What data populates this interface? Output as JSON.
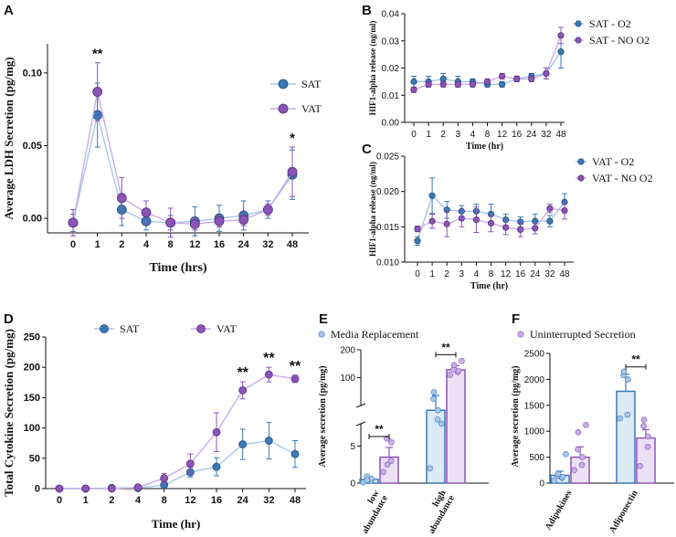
{
  "colors": {
    "sat": "#3a7ab5",
    "vat": "#8a55b5",
    "sat_light": "#a8c6ea",
    "vat_light": "#c8aee6",
    "sat_fill": "#dce9f7",
    "vat_fill": "#ebe1f7"
  },
  "panel_letters": {
    "a": "A",
    "b": "B",
    "c": "C",
    "d": "D",
    "e": "E",
    "f": "F"
  },
  "chart_data": [
    {
      "id": "A",
      "type": "line",
      "ylabel": "Average LDH Secretion (pg/mg)",
      "xlabel": "Time (hrs)",
      "categories": [
        "0",
        "1",
        "2",
        "4",
        "8",
        "12",
        "16",
        "24",
        "32",
        "48"
      ],
      "ylim": [
        -0.01,
        0.12
      ],
      "yticks": [
        "0.00",
        "0.05",
        "0.10"
      ],
      "ytick_values": [
        0,
        0.05,
        0.1
      ],
      "series": [
        {
          "name": "SAT",
          "values": [
            -0.003,
            0.071,
            0.006,
            -0.002,
            -0.003,
            -0.002,
            0.0,
            0.002,
            0.006,
            0.03
          ],
          "errors": [
            0.006,
            0.022,
            0.011,
            0.006,
            0.005,
            0.01,
            0.009,
            0.01,
            0.006,
            0.017
          ]
        },
        {
          "name": "VAT",
          "values": [
            -0.003,
            0.087,
            0.014,
            0.004,
            -0.003,
            -0.004,
            -0.002,
            -0.001,
            0.006,
            0.032
          ],
          "errors": [
            0.009,
            0.02,
            0.014,
            0.008,
            0.01,
            0.004,
            0.004,
            0.004,
            0.004,
            0.017
          ]
        }
      ],
      "annotations": [
        {
          "category": "1",
          "text": "**"
        },
        {
          "category": "48",
          "text": "*"
        }
      ]
    },
    {
      "id": "B",
      "type": "line",
      "ylabel": "HIF1-alpha release (ng/ml)",
      "xlabel": "Time (hr)",
      "categories": [
        "0",
        "1",
        "2",
        "3",
        "4",
        "8",
        "12",
        "16",
        "24",
        "32",
        "48"
      ],
      "ylim": [
        0.0,
        0.04
      ],
      "yticks": [
        "0.00",
        "0.01",
        "0.02",
        "0.03",
        "0.04"
      ],
      "ytick_values": [
        0,
        0.01,
        0.02,
        0.03,
        0.04
      ],
      "series": [
        {
          "name": "SAT - O2",
          "values": [
            0.015,
            0.015,
            0.016,
            0.015,
            0.015,
            0.014,
            0.014,
            0.016,
            0.017,
            0.018,
            0.026
          ],
          "errors": [
            0.002,
            0.002,
            0.002,
            0.002,
            0.001,
            0.001,
            0.001,
            0.001,
            0.001,
            0.002,
            0.006
          ]
        },
        {
          "name": "SAT - NO O2",
          "values": [
            0.012,
            0.014,
            0.014,
            0.014,
            0.014,
            0.015,
            0.017,
            0.016,
            0.016,
            0.018,
            0.032
          ],
          "errors": [
            0.001,
            0.001,
            0.001,
            0.001,
            0.001,
            0.001,
            0.001,
            0.001,
            0.001,
            0.002,
            0.003
          ]
        }
      ]
    },
    {
      "id": "C",
      "type": "line",
      "ylabel": "HIF1-alpha release (ng/ml)",
      "xlabel": "Time (hr)",
      "categories": [
        "0",
        "1",
        "2",
        "3",
        "4",
        "8",
        "12",
        "16",
        "24",
        "32",
        "48"
      ],
      "ylim": [
        0.01,
        0.025
      ],
      "yticks": [
        "0.010",
        "0.015",
        "0.020",
        "0.025"
      ],
      "ytick_values": [
        0.01,
        0.015,
        0.02,
        0.025
      ],
      "series": [
        {
          "name": "VAT - O2",
          "values": [
            0.013,
            0.0194,
            0.0174,
            0.0172,
            0.0172,
            0.0168,
            0.016,
            0.0157,
            0.0158,
            0.0158,
            0.0185
          ],
          "errors": [
            0.0006,
            0.0025,
            0.0012,
            0.0008,
            0.001,
            0.0014,
            0.0008,
            0.0007,
            0.001,
            0.0008,
            0.0012
          ]
        },
        {
          "name": "VAT - NO O2",
          "values": [
            0.0147,
            0.0158,
            0.0154,
            0.0162,
            0.016,
            0.0155,
            0.0149,
            0.0146,
            0.0148,
            0.0176,
            0.0173
          ],
          "errors": [
            0.0004,
            0.001,
            0.0018,
            0.0012,
            0.0018,
            0.0012,
            0.001,
            0.001,
            0.0008,
            0.0006,
            0.0012
          ]
        }
      ]
    },
    {
      "id": "D",
      "type": "line",
      "ylabel": "Total Cytokine Secretion (pg/mg)",
      "xlabel": "Time (hr)",
      "categories": [
        "0",
        "1",
        "2",
        "4",
        "8",
        "12",
        "16",
        "24",
        "32",
        "48"
      ],
      "ylim": [
        0,
        250
      ],
      "yticks": [
        "0",
        "50",
        "100",
        "150",
        "200",
        "250"
      ],
      "ytick_values": [
        0,
        50,
        100,
        150,
        200,
        250
      ],
      "series": [
        {
          "name": "SAT",
          "values": [
            0,
            0,
            1,
            1,
            6,
            27,
            36,
            73,
            79,
            57
          ],
          "errors": [
            0,
            0,
            0,
            1,
            3,
            8,
            15,
            25,
            30,
            22
          ]
        },
        {
          "name": "VAT",
          "values": [
            0,
            0,
            0,
            2,
            17,
            41,
            93,
            162,
            188,
            181
          ],
          "errors": [
            0,
            0,
            0,
            2,
            8,
            16,
            32,
            14,
            12,
            6
          ]
        }
      ],
      "annotations": [
        {
          "category": "24",
          "text": "**"
        },
        {
          "category": "32",
          "text": "**"
        },
        {
          "category": "48",
          "text": "**"
        }
      ]
    },
    {
      "id": "E",
      "type": "bar",
      "ylabel": "Average secretion (pg/mg)",
      "categories": [
        "low abundance",
        "high abundance"
      ],
      "category_lines": [
        [
          "low",
          "abundance"
        ],
        [
          "high",
          "abundance"
        ]
      ],
      "ylim_low": [
        0,
        8
      ],
      "ylim_high": [
        0,
        200
      ],
      "yticks_low": [
        "0",
        "5"
      ],
      "yticks_high": [
        "100",
        "200"
      ],
      "series": [
        {
          "name": "Media Replacement",
          "values": [
            0.5,
            28
          ],
          "errors": [
            0.3,
            22
          ],
          "points": [
            [
              0.1,
              0.3,
              0.6,
              0.9,
              0.4
            ],
            [
              2,
              14,
              28,
              45,
              55,
              8
            ]
          ]
        },
        {
          "name": "Uninterrupted Secretion",
          "values": [
            3.5,
            128
          ],
          "errors": [
            1.3,
            15
          ],
          "points": [
            [
              1.5,
              3,
              5.5,
              6,
              2.5
            ],
            [
              110,
              120,
              125,
              130,
              145,
              160
            ]
          ]
        }
      ],
      "annotations": [
        {
          "category": "low abundance",
          "text": "**"
        },
        {
          "category": "high abundance",
          "text": "**"
        }
      ]
    },
    {
      "id": "F",
      "type": "bar",
      "ylabel": "Average secretion (pg/mg)",
      "categories": [
        "Adipokines",
        "Adiponectin"
      ],
      "ylim": [
        0,
        2500
      ],
      "yticks": [
        "0",
        "500",
        "1000",
        "1500",
        "2000",
        "2500"
      ],
      "ytick_values": [
        0,
        500,
        1000,
        1500,
        2000,
        2500
      ],
      "series": [
        {
          "name": "Media Replacement",
          "values": [
            150,
            1770
          ],
          "errors": [
            80,
            330
          ],
          "points": [
            [
              50,
              100,
              120,
              150,
              180,
              560
            ],
            [
              1250,
              1320,
              2000,
              2080,
              2150
            ]
          ]
        },
        {
          "name": "Uninterrupted Secretion",
          "values": [
            500,
            870
          ],
          "errors": [
            200,
            160
          ],
          "points": [
            [
              250,
              350,
              500,
              650,
              980,
              1120
            ],
            [
              330,
              700,
              900,
              1100,
              1220
            ]
          ]
        }
      ],
      "annotations": [
        {
          "category": "Adiponectin",
          "text": "**"
        }
      ]
    }
  ]
}
